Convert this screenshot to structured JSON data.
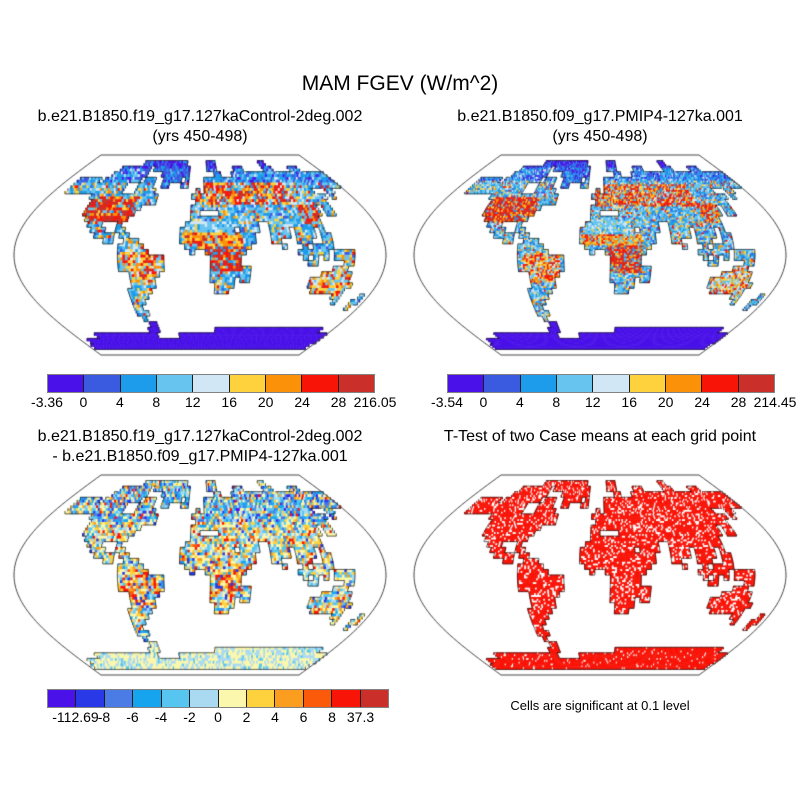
{
  "figure": {
    "title": "MAM FGEV (W/m^2)",
    "background": "#ffffff"
  },
  "chart_data": [
    {
      "type": "heatmap",
      "projection": "robinson",
      "title": "b.e21.B1850.f19_g17.127kaControl-2deg.002",
      "subtitle": "(yrs 450-498)",
      "variable": "MAM FGEV (W/m^2)",
      "levels": [
        0,
        4,
        8,
        12,
        16,
        20,
        24,
        28
      ],
      "data_min": -3.36,
      "data_max": 216.05,
      "legend_position": "bottom",
      "ocean_color": "#ffffff",
      "labelbar": {
        "labels": [
          "-3.36",
          "0",
          "4",
          "8",
          "12",
          "16",
          "20",
          "24",
          "28",
          "216.05"
        ],
        "colors": [
          "#4a12e8",
          "#3a5ae0",
          "#1d9ceb",
          "#67c4ee",
          "#d2e7f5",
          "#fdd23c",
          "#fb9108",
          "#f91408",
          "#cb2f2a"
        ]
      }
    },
    {
      "type": "heatmap",
      "projection": "robinson",
      "title": "b.e21.B1850.f09_g17.PMIP4-127ka.001",
      "subtitle": "(yrs 450-498)",
      "variable": "MAM FGEV (W/m^2)",
      "levels": [
        0,
        4,
        8,
        12,
        16,
        20,
        24,
        28
      ],
      "data_min": -3.54,
      "data_max": 214.45,
      "legend_position": "bottom",
      "ocean_color": "#ffffff",
      "labelbar": {
        "labels": [
          "-3.54",
          "0",
          "4",
          "8",
          "12",
          "16",
          "20",
          "24",
          "28",
          "214.45"
        ],
        "colors": [
          "#4a12e8",
          "#3a5ae0",
          "#1d9ceb",
          "#67c4ee",
          "#d2e7f5",
          "#fdd23c",
          "#fb9108",
          "#f91408",
          "#cb2f2a"
        ]
      }
    },
    {
      "type": "heatmap",
      "projection": "robinson",
      "title": "b.e21.B1850.f19_g17.127kaControl-2deg.002",
      "subtitle": "- b.e21.B1850.f09_g17.PMIP4-127ka.001",
      "variable": "MAM FGEV difference (W/m^2)",
      "levels": [
        -8,
        -6,
        -4,
        -2,
        0,
        2,
        4,
        6,
        8
      ],
      "data_min": -112.69,
      "data_max": 37.3,
      "legend_position": "bottom",
      "ocean_color": "#ffffff",
      "labelbar": {
        "labels": [
          "-112.69",
          "-8",
          "-6",
          "-4",
          "-2",
          "0",
          "2",
          "4",
          "6",
          "8",
          "37.3"
        ],
        "colors": [
          "#4a12e8",
          "#2939e8",
          "#4b7ce6",
          "#17a4ee",
          "#56c6f0",
          "#a9daf2",
          "#fbf7ac",
          "#fdd23c",
          "#fb9d1e",
          "#fa5a0a",
          "#f91408",
          "#cb2f2a"
        ]
      }
    },
    {
      "type": "significance-map",
      "projection": "robinson",
      "title": "T-Test of two Case means at each grid point",
      "subtitle": "",
      "note": "Cells are significant at 0.1 level",
      "significant_color": "#f91408",
      "ocean_color": "#ffffff"
    }
  ]
}
